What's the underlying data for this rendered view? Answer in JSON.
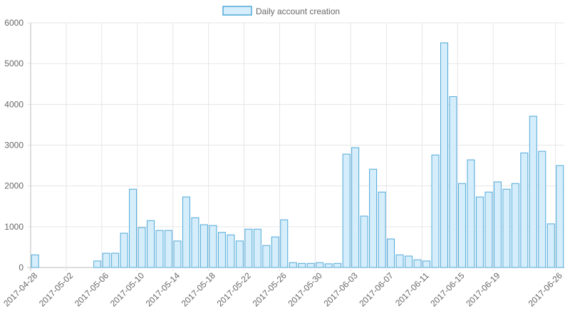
{
  "chart_data": {
    "type": "bar",
    "series": [
      {
        "name": "Daily account creation",
        "color": "#4fa8d8",
        "fill": "#d6eefb",
        "values": [
          310,
          0,
          0,
          0,
          0,
          0,
          0,
          160,
          350,
          350,
          840,
          1920,
          980,
          1150,
          910,
          910,
          650,
          1730,
          1220,
          1050,
          1030,
          860,
          800,
          650,
          940,
          940,
          540,
          750,
          1170,
          120,
          100,
          100,
          120,
          90,
          100,
          2780,
          2940,
          1260,
          2410,
          1850,
          700,
          310,
          280,
          190,
          160,
          2760,
          5510,
          4190,
          2060,
          2640,
          1730,
          1850,
          2100,
          1920,
          2060,
          2810,
          3710,
          2850,
          1070,
          2500
        ]
      }
    ],
    "categories": [
      "2017-04-28",
      null,
      null,
      null,
      "2017-05-02",
      null,
      null,
      null,
      "2017-05-06",
      null,
      null,
      null,
      "2017-05-10",
      null,
      null,
      null,
      "2017-05-14",
      null,
      null,
      null,
      "2017-05-18",
      null,
      null,
      null,
      "2017-05-22",
      null,
      null,
      null,
      "2017-05-26",
      null,
      null,
      null,
      "2017-05-30",
      null,
      null,
      null,
      "2017-06-03",
      null,
      null,
      null,
      "2017-06-07",
      null,
      null,
      null,
      "2017-06-11",
      null,
      null,
      null,
      "2017-06-15",
      null,
      null,
      null,
      "2017-06-19",
      null,
      null,
      null,
      null,
      null,
      null,
      "2017-06-26"
    ],
    "ylim": [
      0,
      6000
    ],
    "yticks": [
      0,
      1000,
      2000,
      3000,
      4000,
      5000,
      6000
    ],
    "grid": true,
    "legend": "top"
  }
}
